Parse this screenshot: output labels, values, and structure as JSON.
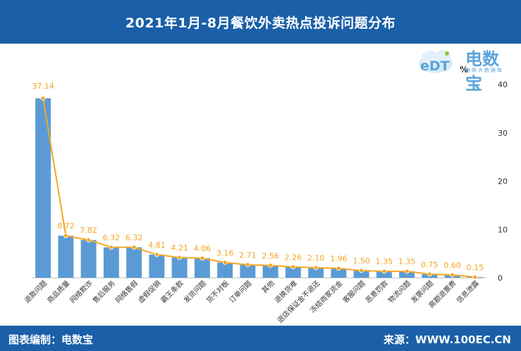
{
  "header": {
    "title": "2021年1月-8月餐饮外卖热点投诉问题分布"
  },
  "footer": {
    "left_text": "图表编制：电数宝",
    "right_text": "来源：WWW.100EC.CN"
  },
  "logo": {
    "brand": "电数宝",
    "sub": "电商大数据库",
    "unit": "%",
    "icon": "edt-cloud-logo"
  },
  "colors": {
    "header_bg": "#1a5fa8",
    "bar": "#5b9bd5",
    "line": "#f5a623",
    "label": "#f5a623"
  },
  "chart_data": {
    "type": "bar",
    "categories": [
      "退款问题",
      "商品质量",
      "网络欺诈",
      "售后服务",
      "网络售假",
      "虚假促销",
      "霸王条款",
      "发货问题",
      "货不对板",
      "订单问题",
      "其他",
      "退换货难",
      "退店保证金不退还",
      "冻结商家资金",
      "客服问题",
      "恶意罚款",
      "物流问题",
      "发票问题",
      "高额退票费",
      "信息泄露"
    ],
    "series": [
      {
        "type": "bar",
        "values": [
          37.14,
          8.72,
          7.82,
          6.32,
          6.32,
          4.81,
          4.21,
          4.06,
          3.16,
          2.71,
          2.56,
          2.26,
          2.1,
          1.96,
          1.5,
          1.35,
          1.35,
          0.75,
          0.6,
          0.15
        ]
      },
      {
        "type": "line",
        "values": [
          37.14,
          8.72,
          7.82,
          6.32,
          6.32,
          4.81,
          4.21,
          4.06,
          3.16,
          2.71,
          2.56,
          2.26,
          2.1,
          1.96,
          1.5,
          1.35,
          1.35,
          0.75,
          0.6,
          0.15
        ]
      }
    ],
    "data_labels": [
      "37.14",
      "8.72",
      "7.82",
      "6.32",
      "6.32",
      "4.81",
      "4.21",
      "4.06",
      "3.16",
      "2.71",
      "2.56",
      "2.26",
      "2.10",
      "1.96",
      "1.50",
      "1.35",
      "1.35",
      "0.75",
      "0.60",
      "0.15"
    ],
    "yaxis_ticks": [
      "0",
      "10",
      "20",
      "30",
      "40"
    ],
    "ylim": [
      0,
      40
    ],
    "yaxis_side": "right",
    "grid": false,
    "legend": "none"
  }
}
